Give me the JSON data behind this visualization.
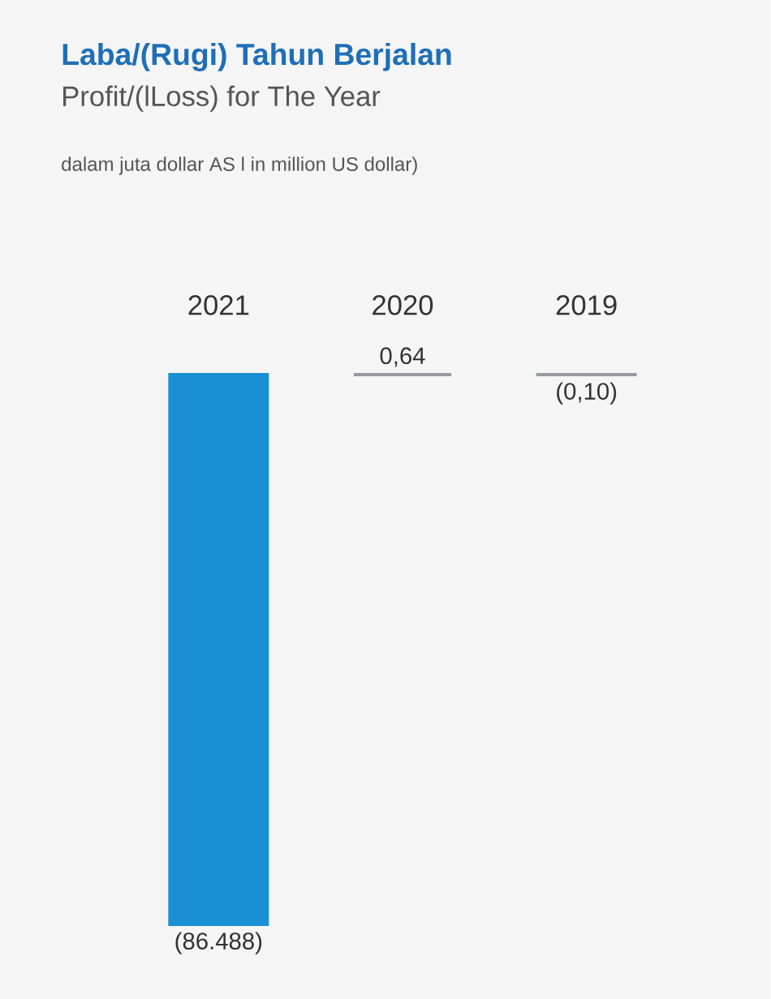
{
  "chart_data": {
    "type": "bar",
    "title": "Laba/(Rugi) Tahun Berjalan",
    "subtitle": "Profit/(lLoss) for The Year",
    "annotations": [
      "dalam juta dollar AS l in million US dollar)"
    ],
    "categories": [
      "2021",
      "2020",
      "2019"
    ],
    "values": [
      -86488,
      0.64,
      -0.1
    ],
    "colors": [
      "#1a8fd6",
      "#979aa3",
      "#979aa3"
    ],
    "value_labels": [
      "(86.488)",
      "0,64",
      "(0,10)"
    ]
  }
}
